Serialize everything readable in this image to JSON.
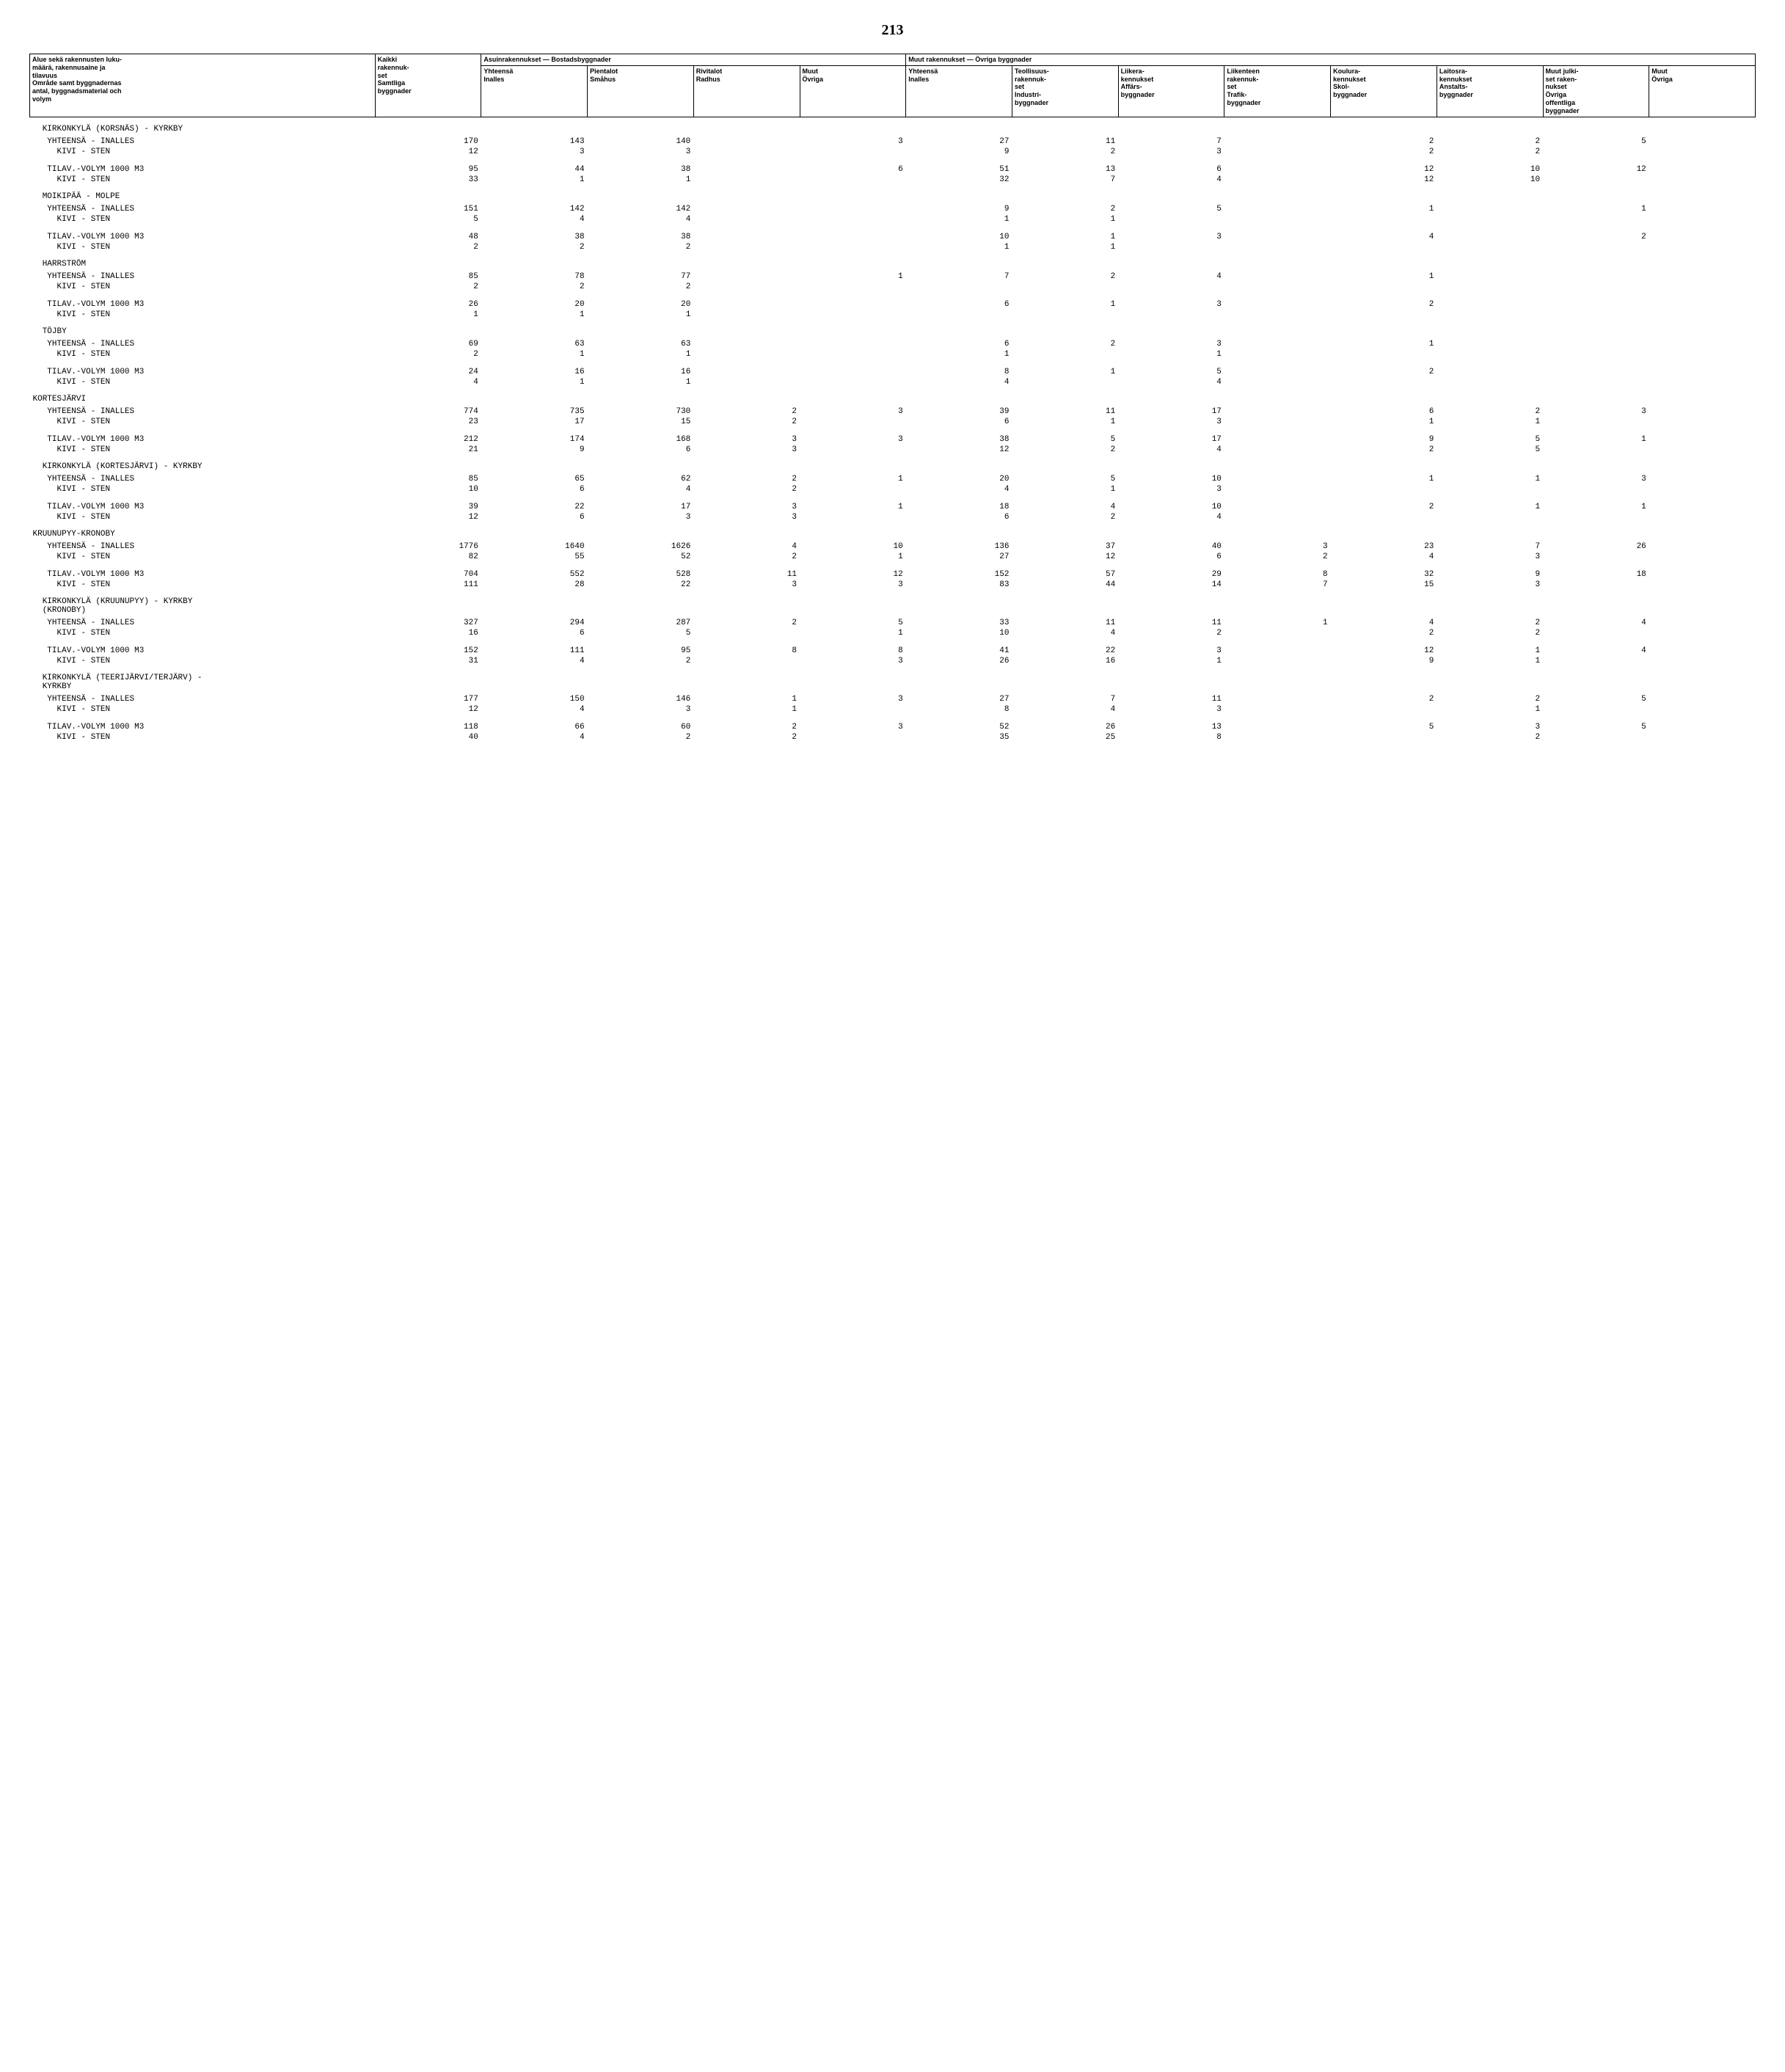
{
  "page_number": "213",
  "header": {
    "row_label": "Alue sekä rakennusten luku-\nmäärä, rakennusaine ja\ntilavuus\nOmråde samt byggnadernas\nantal, byggnadsmaterial och\nvolym",
    "kaikki": "Kaikki\nrakennuk-\nset\nSamtliga\nbyggnader",
    "group_asuin": "Asuinrakennukset — Bostadsbyggnader",
    "group_muut": "Muut rakennukset — Övriga byggnader",
    "asuin": {
      "yhteensa": "Yhteensä\nInalles",
      "pientalot": "Pientalot\nSmåhus",
      "rivitalot": "Rivitalot\nRadhus",
      "muut": "Muut\nÖvriga"
    },
    "muut": {
      "yhteensa": "Yhteensä\nInalles",
      "teollisuus": "Teollisuus-\nrakennuk-\nset\nIndustri-\nbyggnader",
      "liikera": "Liikera-\nkennukset\nAffärs-\nbyggnader",
      "liikenteen": "Liikenteen\nrakennuk-\nset\nTrafik-\nbyggnader",
      "koulura": "Koulura-\nkennukset\nSkol-\nbyggnader",
      "laitosra": "Laitosra-\nkennukset\nAnstalts-\nbyggnader",
      "muutjulki": "Muut julki-\nset raken-\nnukset\nÖvriga\noffentliga\nbyggnader",
      "muut": "Muut\nÖvriga"
    }
  },
  "rows": [
    {
      "type": "section",
      "label": "  KIRKONKYLÄ (KORSNÄS) - KYRKBY"
    },
    {
      "type": "data",
      "label": "   YHTEENSÄ - INALLES",
      "c": [
        "170",
        "143",
        "140",
        "",
        "3",
        "27",
        "11",
        "7",
        "",
        "2",
        "2",
        "5",
        ""
      ]
    },
    {
      "type": "data",
      "label": "     KIVI - STEN",
      "c": [
        "12",
        "3",
        "3",
        "",
        "",
        "9",
        "2",
        "3",
        "",
        "2",
        "2",
        "",
        ""
      ]
    },
    {
      "type": "blank"
    },
    {
      "type": "data",
      "label": "   TILAV.-VOLYM 1000 M3",
      "c": [
        "95",
        "44",
        "38",
        "",
        "6",
        "51",
        "13",
        "6",
        "",
        "12",
        "10",
        "12",
        ""
      ]
    },
    {
      "type": "data",
      "label": "     KIVI - STEN",
      "c": [
        "33",
        "1",
        "1",
        "",
        "",
        "32",
        "7",
        "4",
        "",
        "12",
        "10",
        "",
        ""
      ]
    },
    {
      "type": "section",
      "label": "  MOIKIPÄÄ - MOLPE"
    },
    {
      "type": "data",
      "label": "   YHTEENSÄ - INALLES",
      "c": [
        "151",
        "142",
        "142",
        "",
        "",
        "9",
        "2",
        "5",
        "",
        "1",
        "",
        "1",
        ""
      ]
    },
    {
      "type": "data",
      "label": "     KIVI - STEN",
      "c": [
        "5",
        "4",
        "4",
        "",
        "",
        "1",
        "1",
        "",
        "",
        "",
        "",
        "",
        ""
      ]
    },
    {
      "type": "blank"
    },
    {
      "type": "data",
      "label": "   TILAV.-VOLYM 1000 M3",
      "c": [
        "48",
        "38",
        "38",
        "",
        "",
        "10",
        "1",
        "3",
        "",
        "4",
        "",
        "2",
        ""
      ]
    },
    {
      "type": "data",
      "label": "     KIVI - STEN",
      "c": [
        "2",
        "2",
        "2",
        "",
        "",
        "1",
        "1",
        "",
        "",
        "",
        "",
        "",
        ""
      ]
    },
    {
      "type": "section",
      "label": "  HARRSTRÖM"
    },
    {
      "type": "data",
      "label": "   YHTEENSÄ - INALLES",
      "c": [
        "85",
        "78",
        "77",
        "",
        "1",
        "7",
        "2",
        "4",
        "",
        "1",
        "",
        "",
        ""
      ]
    },
    {
      "type": "data",
      "label": "     KIVI - STEN",
      "c": [
        "2",
        "2",
        "2",
        "",
        "",
        "",
        "",
        "",
        "",
        "",
        "",
        "",
        ""
      ]
    },
    {
      "type": "blank"
    },
    {
      "type": "data",
      "label": "   TILAV.-VOLYM 1000 M3",
      "c": [
        "26",
        "20",
        "20",
        "",
        "",
        "6",
        "1",
        "3",
        "",
        "2",
        "",
        "",
        ""
      ]
    },
    {
      "type": "data",
      "label": "     KIVI - STEN",
      "c": [
        "1",
        "1",
        "1",
        "",
        "",
        "",
        "",
        "",
        "",
        "",
        "",
        "",
        ""
      ]
    },
    {
      "type": "section",
      "label": "  TÖJBY"
    },
    {
      "type": "data",
      "label": "   YHTEENSÄ - INALLES",
      "c": [
        "69",
        "63",
        "63",
        "",
        "",
        "6",
        "2",
        "3",
        "",
        "1",
        "",
        "",
        ""
      ]
    },
    {
      "type": "data",
      "label": "     KIVI - STEN",
      "c": [
        "2",
        "1",
        "1",
        "",
        "",
        "1",
        "",
        "1",
        "",
        "",
        "",
        "",
        ""
      ]
    },
    {
      "type": "blank"
    },
    {
      "type": "data",
      "label": "   TILAV.-VOLYM 1000 M3",
      "c": [
        "24",
        "16",
        "16",
        "",
        "",
        "8",
        "1",
        "5",
        "",
        "2",
        "",
        "",
        ""
      ]
    },
    {
      "type": "data",
      "label": "     KIVI - STEN",
      "c": [
        "4",
        "1",
        "1",
        "",
        "",
        "4",
        "",
        "4",
        "",
        "",
        "",
        "",
        ""
      ]
    },
    {
      "type": "section",
      "label": "KORTESJÄRVI"
    },
    {
      "type": "data",
      "label": "   YHTEENSÄ - INALLES",
      "c": [
        "774",
        "735",
        "730",
        "2",
        "3",
        "39",
        "11",
        "17",
        "",
        "6",
        "2",
        "3",
        ""
      ]
    },
    {
      "type": "data",
      "label": "     KIVI - STEN",
      "c": [
        "23",
        "17",
        "15",
        "2",
        "",
        "6",
        "1",
        "3",
        "",
        "1",
        "1",
        "",
        ""
      ]
    },
    {
      "type": "blank"
    },
    {
      "type": "data",
      "label": "   TILAV.-VOLYM 1000 M3",
      "c": [
        "212",
        "174",
        "168",
        "3",
        "3",
        "38",
        "5",
        "17",
        "",
        "9",
        "5",
        "1",
        ""
      ]
    },
    {
      "type": "data",
      "label": "     KIVI - STEN",
      "c": [
        "21",
        "9",
        "6",
        "3",
        "",
        "12",
        "2",
        "4",
        "",
        "2",
        "5",
        "",
        ""
      ]
    },
    {
      "type": "section",
      "label": "  KIRKONKYLÄ (KORTESJÄRVI) - KYRKBY"
    },
    {
      "type": "data",
      "label": "   YHTEENSÄ - INALLES",
      "c": [
        "85",
        "65",
        "62",
        "2",
        "1",
        "20",
        "5",
        "10",
        "",
        "1",
        "1",
        "3",
        ""
      ]
    },
    {
      "type": "data",
      "label": "     KIVI - STEN",
      "c": [
        "10",
        "6",
        "4",
        "2",
        "",
        "4",
        "1",
        "3",
        "",
        "",
        "",
        "",
        ""
      ]
    },
    {
      "type": "blank"
    },
    {
      "type": "data",
      "label": "   TILAV.-VOLYM 1000 M3",
      "c": [
        "39",
        "22",
        "17",
        "3",
        "1",
        "18",
        "4",
        "10",
        "",
        "2",
        "1",
        "1",
        ""
      ]
    },
    {
      "type": "data",
      "label": "     KIVI - STEN",
      "c": [
        "12",
        "6",
        "3",
        "3",
        "",
        "6",
        "2",
        "4",
        "",
        "",
        "",
        "",
        ""
      ]
    },
    {
      "type": "section",
      "label": "KRUUNUPYY-KRONOBY"
    },
    {
      "type": "data",
      "label": "   YHTEENSÄ - INALLES",
      "c": [
        "1776",
        "1640",
        "1626",
        "4",
        "10",
        "136",
        "37",
        "40",
        "3",
        "23",
        "7",
        "26",
        ""
      ]
    },
    {
      "type": "data",
      "label": "     KIVI - STEN",
      "c": [
        "82",
        "55",
        "52",
        "2",
        "1",
        "27",
        "12",
        "6",
        "2",
        "4",
        "3",
        "",
        ""
      ]
    },
    {
      "type": "blank"
    },
    {
      "type": "data",
      "label": "   TILAV.-VOLYM 1000 M3",
      "c": [
        "704",
        "552",
        "528",
        "11",
        "12",
        "152",
        "57",
        "29",
        "8",
        "32",
        "9",
        "18",
        ""
      ]
    },
    {
      "type": "data",
      "label": "     KIVI - STEN",
      "c": [
        "111",
        "28",
        "22",
        "3",
        "3",
        "83",
        "44",
        "14",
        "7",
        "15",
        "3",
        "",
        ""
      ]
    },
    {
      "type": "section",
      "label": "  KIRKONKYLÄ (KRUUNUPYY) - KYRKBY\n  (KRONOBY)"
    },
    {
      "type": "data",
      "label": "   YHTEENSÄ - INALLES",
      "c": [
        "327",
        "294",
        "287",
        "2",
        "5",
        "33",
        "11",
        "11",
        "1",
        "4",
        "2",
        "4",
        ""
      ]
    },
    {
      "type": "data",
      "label": "     KIVI - STEN",
      "c": [
        "16",
        "6",
        "5",
        "",
        "1",
        "10",
        "4",
        "2",
        "",
        "2",
        "2",
        "",
        ""
      ]
    },
    {
      "type": "blank"
    },
    {
      "type": "data",
      "label": "   TILAV.-VOLYM 1000 M3",
      "c": [
        "152",
        "111",
        "95",
        "8",
        "8",
        "41",
        "22",
        "3",
        "",
        "12",
        "1",
        "4",
        ""
      ]
    },
    {
      "type": "data",
      "label": "     KIVI - STEN",
      "c": [
        "31",
        "4",
        "2",
        "",
        "3",
        "26",
        "16",
        "1",
        "",
        "9",
        "1",
        "",
        ""
      ]
    },
    {
      "type": "section",
      "label": "  KIRKONKYLÄ (TEERIJÄRVI/TERJÄRV) -\n  KYRKBY"
    },
    {
      "type": "data",
      "label": "   YHTEENSÄ - INALLES",
      "c": [
        "177",
        "150",
        "146",
        "1",
        "3",
        "27",
        "7",
        "11",
        "",
        "2",
        "2",
        "5",
        ""
      ]
    },
    {
      "type": "data",
      "label": "     KIVI - STEN",
      "c": [
        "12",
        "4",
        "3",
        "1",
        "",
        "8",
        "4",
        "3",
        "",
        "",
        "1",
        "",
        ""
      ]
    },
    {
      "type": "blank"
    },
    {
      "type": "data",
      "label": "   TILAV.-VOLYM 1000 M3",
      "c": [
        "118",
        "66",
        "60",
        "2",
        "3",
        "52",
        "26",
        "13",
        "",
        "5",
        "3",
        "5",
        ""
      ]
    },
    {
      "type": "data",
      "label": "     KIVI - STEN",
      "c": [
        "40",
        "4",
        "2",
        "2",
        "",
        "35",
        "25",
        "8",
        "",
        "",
        "2",
        "",
        ""
      ]
    }
  ]
}
